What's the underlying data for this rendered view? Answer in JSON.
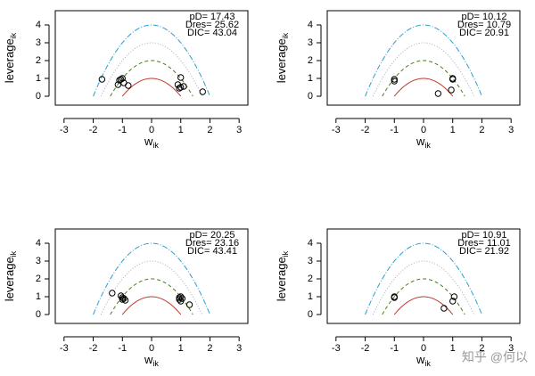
{
  "chart_data": [
    {
      "type": "scatter",
      "xlabel": "w",
      "xlabel_sub": "ik",
      "ylabel": "leverage",
      "ylabel_sub": "ik",
      "annotations": [
        "pD= 17.43",
        "Dres= 25.62",
        "DIC= 43.04"
      ],
      "xlim": [
        -3.3,
        3.3
      ],
      "ylim": [
        -0.5,
        4.8
      ],
      "xticks": [
        -3,
        -2,
        -1,
        0,
        1,
        2,
        3
      ],
      "yticks": [
        0,
        1,
        2,
        3,
        4
      ],
      "curves": [
        {
          "level": 1,
          "color": "#c0392b",
          "dash": "none"
        },
        {
          "level": 2,
          "color": "#4a7d1a",
          "dash": "4 3"
        },
        {
          "level": 3,
          "color": "#a8a8c0",
          "dash": "1 2"
        },
        {
          "level": 4,
          "color": "#2a9fd0",
          "dash": "6 2 1 2"
        }
      ],
      "x": [
        -1.7,
        -1.1,
        -1.0,
        -1.15,
        -0.95,
        -0.8,
        -1.05,
        0.9,
        1.0,
        1.0,
        0.95,
        1.1,
        1.75
      ],
      "values": [
        0.95,
        0.9,
        1.0,
        0.65,
        0.75,
        0.6,
        0.95,
        0.65,
        1.05,
        0.5,
        0.45,
        0.55,
        0.25
      ]
    },
    {
      "type": "scatter",
      "xlabel": "w",
      "xlabel_sub": "ik",
      "ylabel": "leverage",
      "ylabel_sub": "ik",
      "annotations": [
        "pD= 10.12",
        "Dres= 10.79",
        "DIC= 20.91"
      ],
      "xlim": [
        -3.3,
        3.3
      ],
      "ylim": [
        -0.5,
        4.8
      ],
      "xticks": [
        -3,
        -2,
        -1,
        0,
        1,
        2,
        3
      ],
      "yticks": [
        0,
        1,
        2,
        3,
        4
      ],
      "curves": [
        {
          "level": 1,
          "color": "#c0392b",
          "dash": "none"
        },
        {
          "level": 2,
          "color": "#4a7d1a",
          "dash": "4 3"
        },
        {
          "level": 3,
          "color": "#a8a8c0",
          "dash": "1 2"
        },
        {
          "level": 4,
          "color": "#2a9fd0",
          "dash": "6 2 1 2"
        }
      ],
      "x": [
        -1.0,
        -1.0,
        0.5,
        1.0,
        1.0,
        0.95
      ],
      "values": [
        0.95,
        0.85,
        0.15,
        1.0,
        0.95,
        0.35
      ]
    },
    {
      "type": "scatter",
      "xlabel": "w",
      "xlabel_sub": "ik",
      "ylabel": "leverage",
      "ylabel_sub": "ik",
      "annotations": [
        "pD= 20.25",
        "Dres= 23.16",
        "DIC= 43.41"
      ],
      "xlim": [
        -3.3,
        3.3
      ],
      "ylim": [
        -0.5,
        4.8
      ],
      "xticks": [
        -3,
        -2,
        -1,
        0,
        1,
        2,
        3
      ],
      "yticks": [
        0,
        1,
        2,
        3,
        4
      ],
      "curves": [
        {
          "level": 1,
          "color": "#c0392b",
          "dash": "none"
        },
        {
          "level": 2,
          "color": "#4a7d1a",
          "dash": "4 3"
        },
        {
          "level": 3,
          "color": "#a8a8c0",
          "dash": "1 2"
        },
        {
          "level": 4,
          "color": "#2a9fd0",
          "dash": "6 2 1 2"
        }
      ],
      "x": [
        -1.35,
        -1.05,
        -1.0,
        -0.95,
        -1.0,
        -0.9,
        1.0,
        0.95,
        1.0,
        1.05,
        0.95,
        1.3
      ],
      "values": [
        1.2,
        1.05,
        0.95,
        0.9,
        0.85,
        0.8,
        1.0,
        0.85,
        0.75,
        0.9,
        0.95,
        0.55
      ]
    },
    {
      "type": "scatter",
      "xlabel": "w",
      "xlabel_sub": "ik",
      "ylabel": "leverage",
      "ylabel_sub": "ik",
      "annotations": [
        "pD= 10.91",
        "Dres= 11.01",
        "DIC= 21.92"
      ],
      "xlim": [
        -3.3,
        3.3
      ],
      "ylim": [
        -0.5,
        4.8
      ],
      "xticks": [
        -3,
        -2,
        -1,
        0,
        1,
        2,
        3
      ],
      "yticks": [
        0,
        1,
        2,
        3,
        4
      ],
      "curves": [
        {
          "level": 1,
          "color": "#c0392b",
          "dash": "none"
        },
        {
          "level": 2,
          "color": "#4a7d1a",
          "dash": "4 3"
        },
        {
          "level": 3,
          "color": "#a8a8c0",
          "dash": "1 2"
        },
        {
          "level": 4,
          "color": "#2a9fd0",
          "dash": "6 2 1 2"
        }
      ],
      "x": [
        -1.0,
        -1.0,
        1.0,
        1.05,
        0.7
      ],
      "values": [
        1.0,
        0.95,
        0.75,
        1.0,
        0.35
      ]
    }
  ],
  "watermark": "知乎 @何以"
}
